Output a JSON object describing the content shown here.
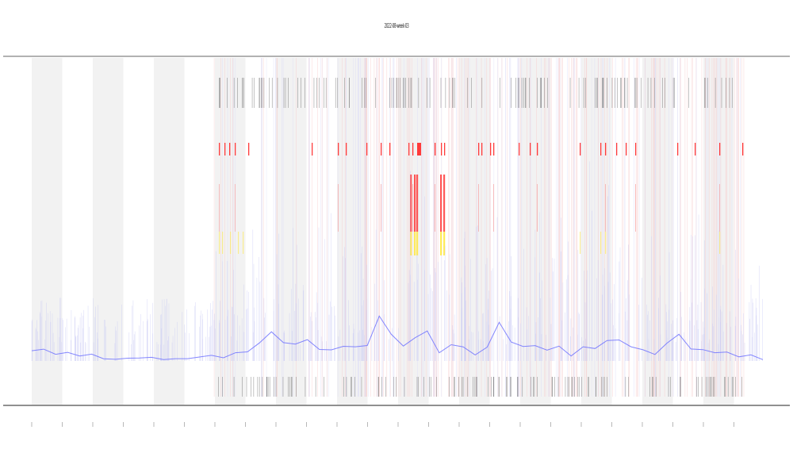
{
  "chart_data": {
    "type": "line",
    "title": "2022-08-week-03",
    "xlabel": "",
    "ylabel": "",
    "threshold_colors": {
      "low": "#6f72ff",
      "mid": "#ffe94d",
      "high": "#ff3a3a"
    },
    "bands_visible": true,
    "marker_rows": true,
    "series": [
      {
        "values": [
          0.08,
          0.1,
          0.06,
          0.05,
          0.04,
          0.04,
          0.03,
          0.03,
          0.02,
          0.02,
          0.02,
          0.02,
          0.02,
          0.02,
          0.02,
          0.03,
          0.03,
          0.06,
          0.08,
          0.13,
          0.22,
          0.15,
          0.12,
          0.18,
          0.1,
          0.09,
          0.12,
          0.1,
          0.11,
          0.35,
          0.22,
          0.12,
          0.18,
          0.25,
          0.08,
          0.12,
          0.1,
          0.06,
          0.11,
          0.3,
          0.15,
          0.1,
          0.14,
          0.1,
          0.12,
          0.05,
          0.11,
          0.09,
          0.18,
          0.15,
          0.11,
          0.08,
          0.06,
          0.15,
          0.2,
          0.08,
          0.1,
          0.07,
          0.08,
          0.05,
          0.03,
          0.02
        ]
      }
    ]
  }
}
